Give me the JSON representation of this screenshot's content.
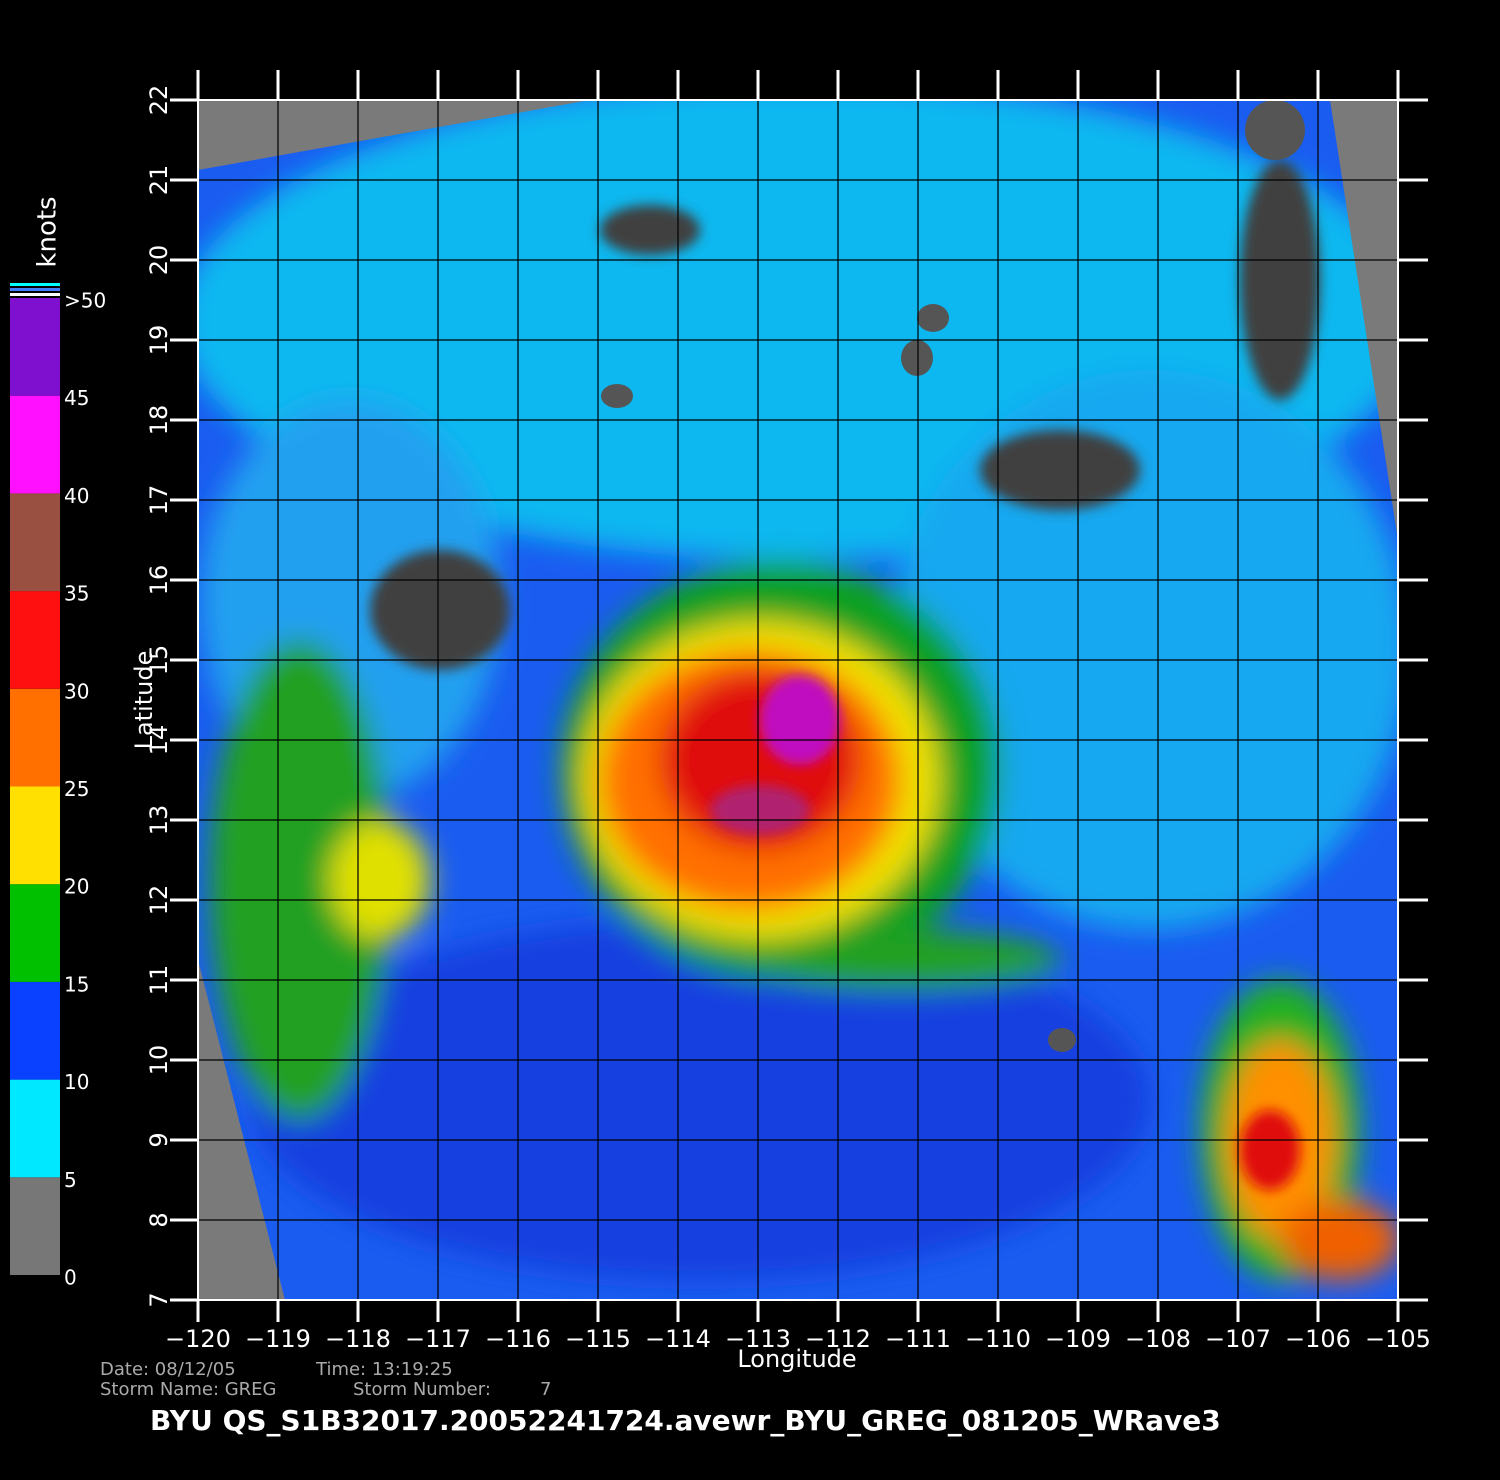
{
  "map": {
    "xlabel": "Longitude",
    "ylabel": "Latitude",
    "xlim": [
      -120,
      -105
    ],
    "ylim": [
      7,
      22
    ],
    "xticks": [
      {
        "value": -120,
        "label": "−120"
      },
      {
        "value": -119,
        "label": "−119"
      },
      {
        "value": -118,
        "label": "−118"
      },
      {
        "value": -117,
        "label": "−117"
      },
      {
        "value": -116,
        "label": "−116"
      },
      {
        "value": -115,
        "label": "−115"
      },
      {
        "value": -114,
        "label": "−114"
      },
      {
        "value": -113,
        "label": "−113"
      },
      {
        "value": -112,
        "label": "−112"
      },
      {
        "value": -111,
        "label": "−111"
      },
      {
        "value": -110,
        "label": "−110"
      },
      {
        "value": -109,
        "label": "−109"
      },
      {
        "value": -108,
        "label": "−108"
      },
      {
        "value": -107,
        "label": "−107"
      },
      {
        "value": -106,
        "label": "−106"
      },
      {
        "value": -105,
        "label": "−105"
      }
    ],
    "yticks": [
      7,
      8,
      9,
      10,
      11,
      12,
      13,
      14,
      15,
      16,
      17,
      18,
      19,
      20,
      21,
      22
    ]
  },
  "colorbar": {
    "title": "knots",
    "ticks": [
      0,
      5,
      10,
      15,
      20,
      25,
      30,
      35,
      40,
      45,
      {
        "value": 50,
        "label": ">50"
      }
    ],
    "colors": [
      "#777777",
      "#00e8ff",
      "#0a40ff",
      "#00c000",
      "#ffe000",
      "#ff7000",
      "#ff1010",
      "#9a5040",
      "#ff10ff",
      "#8010d0"
    ]
  },
  "footer": {
    "date": "Date: 08/12/05",
    "time": "Time: 13:19:25",
    "storm_name": "Storm Name: GREG",
    "storm_number_label": "Storm Number:",
    "storm_number": 7,
    "file": "BYU QS_S1B32017.20052241724.avewr_BYU_GREG_081205_WRave3"
  }
}
